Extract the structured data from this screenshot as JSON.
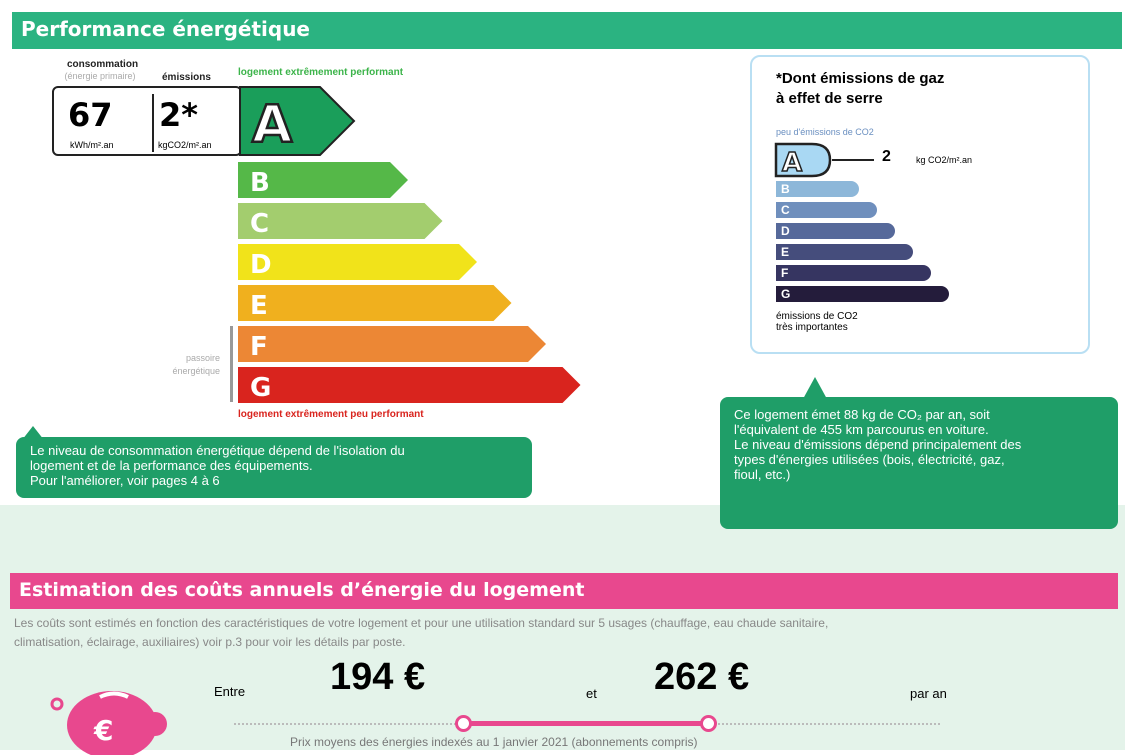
{
  "dpe": {
    "title": "Performance énergétique",
    "consumption_label": "consommation",
    "consumption_sub": "(énergie primaire)",
    "emissions_label": "émissions",
    "consumption_value": "67",
    "consumption_unit": "kWh/m².an",
    "emissions_value": "2*",
    "emissions_unit": "kgCO2/m².an",
    "top_label": "logement extrêmement performant",
    "bottom_label": "logement extrêmement peu performant",
    "passoire_label": "passoire énergétique",
    "current_class": "A",
    "classes": [
      {
        "letter": "A",
        "color": "#1a9e5a"
      },
      {
        "letter": "B",
        "color": "#55b848"
      },
      {
        "letter": "C",
        "color": "#a3cd6e"
      },
      {
        "letter": "D",
        "color": "#f1e31a"
      },
      {
        "letter": "E",
        "color": "#f0b01e"
      },
      {
        "letter": "F",
        "color": "#ec8735"
      },
      {
        "letter": "G",
        "color": "#d9241e"
      }
    ],
    "callout": [
      "Le niveau de consommation énergétique dépend de l'isolation du",
      "logement et de la performance des équipements.",
      "Pour l'améliorer, voir pages 4 à 6"
    ]
  },
  "ges": {
    "title1": "*Dont émissions de gaz",
    "title2": "à effet de serre",
    "top_label": "peu d'émissions de CO2",
    "current_class": "A",
    "value": "2",
    "unit": "kg CO2/m².an",
    "classes": [
      {
        "letter": "B",
        "color": "#8db7d9"
      },
      {
        "letter": "C",
        "color": "#6f8fbd"
      },
      {
        "letter": "D",
        "color": "#56699a"
      },
      {
        "letter": "E",
        "color": "#454d7c"
      },
      {
        "letter": "F",
        "color": "#363561"
      },
      {
        "letter": "G",
        "color": "#241c3b"
      }
    ],
    "bottom1": "émissions de CO2",
    "bottom2": "très importantes",
    "callout": [
      "Ce logement émet 88 kg de CO₂  par an, soit",
      "l'équivalent de 455  km parcourus en voiture.",
      "Le niveau d'émissions dépend principalement des",
      "types d'énergies utilisées (bois, électricité, gaz,",
      "fioul, etc.)"
    ]
  },
  "costs": {
    "title": "Estimation des coûts annuels d’énergie du logement",
    "desc1": "Les coûts sont estimés en fonction des caractéristiques de votre logement et pour une utilisation standard sur 5 usages (chauffage, eau chaude sanitaire,",
    "desc2": "climatisation, éclairage, auxiliaires) voir p.3 pour voir les détails par poste.",
    "between": "Entre",
    "min": "194 €",
    "and": "et",
    "max": "262 €",
    "per_year": "par an",
    "note": "Prix moyens des énergies indexés au 1 janvier 2021 (abonnements compris)"
  }
}
